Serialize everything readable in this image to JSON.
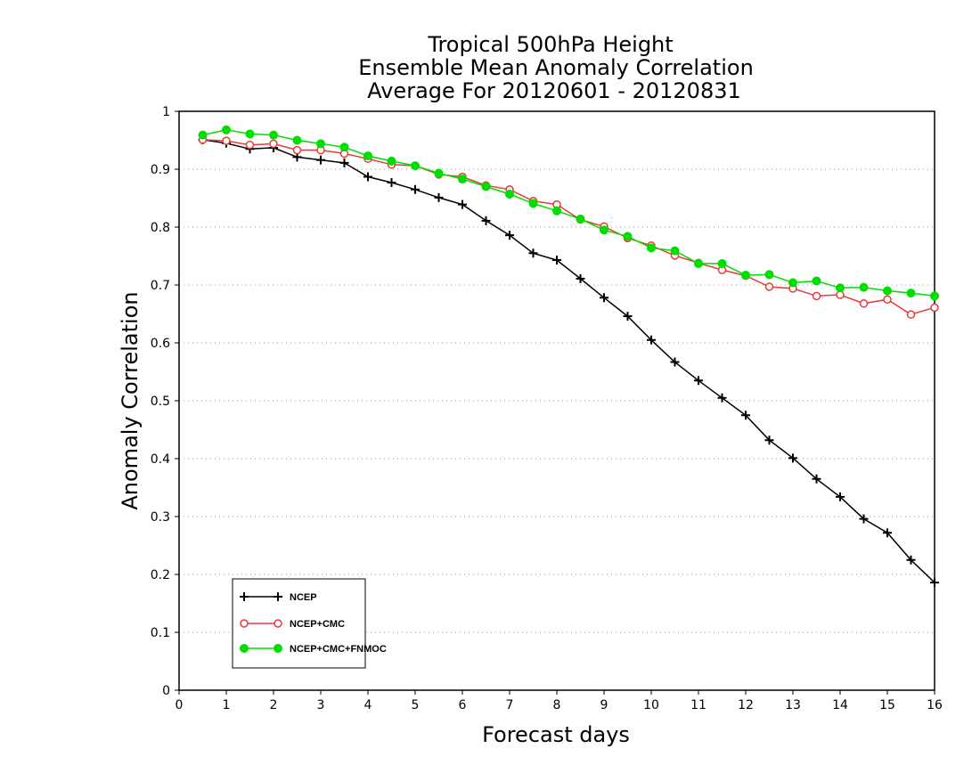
{
  "chart_data": {
    "type": "line",
    "title_lines": [
      "Tropical 500hPa Height",
      "Ensemble Mean Anomaly Correlation",
      "Average For 20120601 - 20120831"
    ],
    "xlabel": "Forecast days",
    "ylabel": "Anomaly Correlation",
    "xlim": [
      0,
      16
    ],
    "ylim": [
      0,
      1
    ],
    "x_ticks": [
      "0",
      "1",
      "2",
      "3",
      "4",
      "5",
      "6",
      "7",
      "8",
      "9",
      "10",
      "11",
      "12",
      "13",
      "14",
      "15",
      "16"
    ],
    "y_ticks": [
      "0",
      "0.1",
      "0.2",
      "0.3",
      "0.4",
      "0.5",
      "0.6",
      "0.7",
      "0.8",
      "0.9",
      "1"
    ],
    "grid": true,
    "legend_position": "bottom-left",
    "x": [
      0.5,
      1,
      1.5,
      2,
      2.5,
      3,
      3.5,
      4,
      4.5,
      5,
      5.5,
      6,
      6.5,
      7,
      7.5,
      8,
      8.5,
      9,
      9.5,
      10,
      10.5,
      11,
      11.5,
      12,
      12.5,
      13,
      13.5,
      14,
      14.5,
      15,
      15.5,
      16
    ],
    "series": [
      {
        "name": "NCEP",
        "color": "#000000",
        "marker": "plus",
        "values": [
          0.951,
          0.945,
          0.935,
          0.937,
          0.921,
          0.916,
          0.911,
          0.887,
          0.877,
          0.865,
          0.851,
          0.839,
          0.811,
          0.786,
          0.755,
          0.743,
          0.711,
          0.678,
          0.646,
          0.605,
          0.567,
          0.535,
          0.505,
          0.475,
          0.432,
          0.401,
          0.365,
          0.334,
          0.296,
          0.272,
          0.225,
          0.186
        ]
      },
      {
        "name": "NCEP+CMC",
        "color": "#e83a3a",
        "marker": "open-circle",
        "values": [
          0.951,
          0.949,
          0.942,
          0.944,
          0.933,
          0.933,
          0.927,
          0.918,
          0.908,
          0.906,
          0.891,
          0.887,
          0.872,
          0.865,
          0.845,
          0.839,
          0.813,
          0.801,
          0.781,
          0.768,
          0.751,
          0.738,
          0.726,
          0.716,
          0.697,
          0.694,
          0.681,
          0.683,
          0.668,
          0.675,
          0.649,
          0.661
        ]
      },
      {
        "name": "NCEP+CMC+FNMOC",
        "color": "#00dd00",
        "marker": "filled-circle",
        "values": [
          0.959,
          0.968,
          0.961,
          0.959,
          0.95,
          0.944,
          0.938,
          0.923,
          0.914,
          0.906,
          0.893,
          0.883,
          0.87,
          0.857,
          0.841,
          0.828,
          0.814,
          0.795,
          0.784,
          0.764,
          0.759,
          0.737,
          0.737,
          0.717,
          0.718,
          0.704,
          0.707,
          0.695,
          0.696,
          0.69,
          0.686,
          0.681
        ]
      }
    ]
  }
}
